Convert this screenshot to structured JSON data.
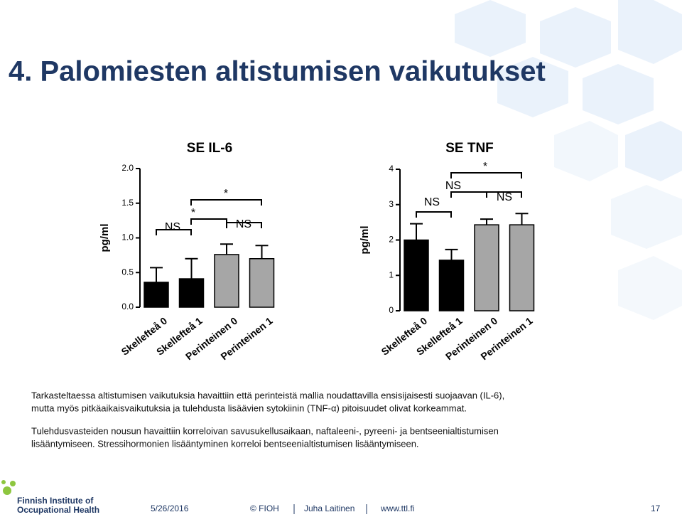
{
  "slide": {
    "title": "4. Palomiesten altistumisen vaikutukset",
    "paragraphs": [
      [
        "Tarkasteltaessa altistumisen vaikutuksia havaittiin että perinteistä mallia noudattavilla  ensisijaisesti suojaavan (IL-6),",
        "mutta myös pitkäaikaisvaikutuksia ja tulehdusta lisäävien sytokiinin (TNF-α) pitoisuudet olivat korkeammat."
      ],
      [
        "Tulehdusvasteiden nousun havaittiin korreloivan savusukellusaikaan, naftaleeni-, pyreeni- ja bentseenialtistumisen",
        "lisääntymiseen. Stressihormonien lisääntyminen korreloi bentseenialtistumisen lisääntymiseen."
      ]
    ],
    "logo": [
      "Finnish Institute of",
      "Occupational Health"
    ],
    "footer": {
      "date": "5/26/2016",
      "copyright": "© FIOH",
      "author": "Juha Laitinen",
      "url": "www.ttl.fi",
      "page": "17"
    }
  },
  "chart_data": [
    {
      "type": "bar",
      "title": "SE IL-6",
      "y_label": "pg/ml",
      "categories": [
        "Skellefteå 0",
        "Skellefteå 1",
        "Perinteinen 0",
        "Perinteinen 1"
      ],
      "values": [
        0.36,
        0.41,
        0.76,
        0.7
      ],
      "errors": [
        0.21,
        0.29,
        0.15,
        0.19
      ],
      "colors": [
        "#000000",
        "#000000",
        "#a6a6a6",
        "#a6a6a6"
      ],
      "ylim": [
        0,
        2
      ],
      "yticks": [
        {
          "value": 0,
          "label": "0.0"
        },
        0.5,
        {
          "value": 1,
          "label": "1.0"
        },
        1.5,
        {
          "value": 2,
          "label": "2.0"
        }
      ],
      "annotations": [
        "NS",
        "*",
        "*",
        "NS"
      ]
    },
    {
      "type": "bar",
      "title": "SE TNF",
      "y_label": "pg/ml",
      "categories": [
        "Skellefteå 0",
        "Skellefteå 1",
        "Perinteinen 0",
        "Perinteinen 1"
      ],
      "values": [
        2.0,
        1.43,
        2.43,
        2.43
      ],
      "errors": [
        0.46,
        0.3,
        0.16,
        0.32
      ],
      "colors": [
        "#000000",
        "#000000",
        "#a6a6a6",
        "#a6a6a6"
      ],
      "ylim": [
        0,
        4
      ],
      "yticks": [
        0,
        1,
        2,
        3,
        4
      ],
      "annotations": [
        "NS",
        "NS",
        "*",
        "NS"
      ]
    }
  ]
}
